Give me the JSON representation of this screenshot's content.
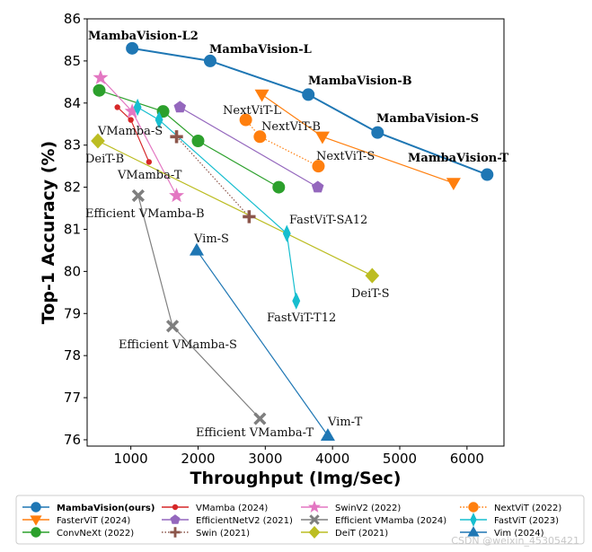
{
  "chart_data": {
    "type": "line",
    "xlabel": "Throughput (Img/Sec)",
    "ylabel": "Top-1 Accuracy (%)",
    "xlim": [
      350,
      6550
    ],
    "ylim": [
      75.85,
      86
    ],
    "xticks": [
      1000,
      2000,
      3000,
      4000,
      5000,
      6000
    ],
    "yticks": [
      76,
      77,
      78,
      79,
      80,
      81,
      82,
      83,
      84,
      85,
      86
    ],
    "grid": false,
    "series": [
      {
        "name": "MambaVision(ours)",
        "color": "#1f77b4",
        "marker": "circle",
        "linestyle": "solid",
        "bold_legend": true,
        "x": [
          1020,
          2180,
          3640,
          4670,
          6300
        ],
        "y": [
          85.3,
          85.0,
          84.2,
          83.3,
          82.3
        ],
        "labels": [
          "MambaVision-L2",
          "MambaVision-L",
          "MambaVision-B",
          "MambaVision-S",
          "MambaVision-T"
        ]
      },
      {
        "name": "FasterViT (2024)",
        "color": "#ff7f0e",
        "marker": "triangle-down",
        "linestyle": "solid",
        "x": [
          2950,
          3850,
          5800
        ],
        "y": [
          84.2,
          83.2,
          82.1
        ]
      },
      {
        "name": "ConvNeXt (2022)",
        "color": "#2ca02c",
        "marker": "circle",
        "linestyle": "solid",
        "x": [
          530,
          1480,
          2000,
          3200
        ],
        "y": [
          84.3,
          83.8,
          83.1,
          82.0
        ]
      },
      {
        "name": "VMamba (2024)",
        "color": "#d62728",
        "marker": "dot",
        "linestyle": "solid",
        "x": [
          800,
          1000,
          1270
        ],
        "y": [
          83.9,
          83.6,
          82.6
        ]
      },
      {
        "name": "EfficientNetV2 (2021)",
        "color": "#9467bd",
        "marker": "pentagon",
        "linestyle": "solid",
        "x": [
          1730,
          3780
        ],
        "y": [
          83.9,
          82.0
        ]
      },
      {
        "name": "Swin (2021)",
        "color": "#8c564b",
        "marker": "plus",
        "linestyle": "dotted",
        "x": [
          1680,
          2760
        ],
        "y": [
          83.2,
          81.3
        ]
      },
      {
        "name": "SwinV2 (2022)",
        "color": "#e377c2",
        "marker": "star",
        "linestyle": "solid",
        "x": [
          550,
          1020,
          1680
        ],
        "y": [
          84.6,
          83.8,
          81.8
        ]
      },
      {
        "name": "Efficient VMamba (2024)",
        "color": "#7f7f7f",
        "marker": "x",
        "linestyle": "solid",
        "x": [
          1110,
          1620,
          2920
        ],
        "y": [
          81.8,
          78.7,
          76.5
        ],
        "labels": [
          "Efficient VMamba-B",
          "Efficient VMamba-S",
          "Efficient VMamba-T"
        ]
      },
      {
        "name": "DeiT (2021)",
        "color": "#bcbd22",
        "marker": "diamond",
        "linestyle": "solid",
        "x": [
          510,
          4590
        ],
        "y": [
          83.1,
          79.9
        ],
        "labels": [
          "DeiT-B",
          "DeiT-S"
        ]
      },
      {
        "name": "NextViT (2022)",
        "color": "#ff7f0e",
        "marker": "circle",
        "linestyle": "dotted",
        "x": [
          2710,
          2920,
          3790
        ],
        "y": [
          83.6,
          83.2,
          82.5
        ],
        "labels": [
          "NextViT-L",
          "NextViT-B",
          "NextViT-S"
        ]
      },
      {
        "name": "FastViT (2023)",
        "color": "#17becf",
        "marker": "thin-diamond",
        "linestyle": "solid",
        "x": [
          1100,
          1420,
          3320,
          3460
        ],
        "y": [
          83.9,
          83.6,
          80.9,
          79.3
        ],
        "labels": [
          "",
          "",
          "FastViT-SA12",
          "FastViT-T12"
        ]
      },
      {
        "name": "Vim (2024)",
        "color": "#1f77b4",
        "marker": "triangle-up",
        "linestyle": "solid",
        "x": [
          1980,
          3930
        ],
        "y": [
          80.5,
          76.1
        ],
        "labels": [
          "Vim-S",
          "Vim-T"
        ]
      }
    ],
    "extra_labels": [
      "VMamba-S",
      "VMamba-T"
    ]
  },
  "watermark": "CSDN @weixin_45305421"
}
